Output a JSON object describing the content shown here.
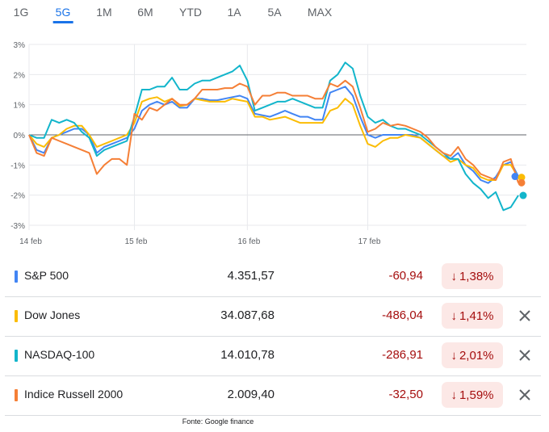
{
  "tabs": [
    {
      "label": "1G",
      "active": false
    },
    {
      "label": "5G",
      "active": true
    },
    {
      "label": "1M",
      "active": false
    },
    {
      "label": "6M",
      "active": false
    },
    {
      "label": "YTD",
      "active": false
    },
    {
      "label": "1A",
      "active": false
    },
    {
      "label": "5A",
      "active": false
    },
    {
      "label": "MAX",
      "active": false
    }
  ],
  "chart_data": {
    "type": "line",
    "x_labels": [
      "14 feb",
      "15 feb",
      "16 feb",
      "17 feb"
    ],
    "y_ticks": [
      "3%",
      "2%",
      "1%",
      "0%",
      "-1%",
      "-2%",
      "-3%"
    ],
    "ylim": [
      -3,
      3
    ],
    "baseline": 0,
    "grid": true,
    "series": [
      {
        "name": "S&P 500",
        "color": "#4285f4",
        "values": [
          0.0,
          -0.5,
          -0.6,
          -0.1,
          0.0,
          0.1,
          0.2,
          0.2,
          0.0,
          -0.6,
          -0.4,
          -0.3,
          -0.2,
          -0.1,
          0.2,
          0.8,
          1.0,
          1.1,
          1.0,
          1.1,
          0.9,
          0.9,
          1.2,
          1.2,
          1.15,
          1.15,
          1.2,
          1.25,
          1.3,
          1.2,
          0.7,
          0.65,
          0.6,
          0.7,
          0.8,
          0.7,
          0.6,
          0.6,
          0.5,
          0.5,
          1.4,
          1.5,
          1.6,
          1.3,
          0.6,
          0.0,
          -0.1,
          0.0,
          0.0,
          0.0,
          0.0,
          0.0,
          -0.1,
          -0.3,
          -0.5,
          -0.7,
          -0.8,
          -0.6,
          -1.0,
          -1.2,
          -1.5,
          -1.6,
          -1.4,
          -1.0,
          -0.9,
          -1.38
        ]
      },
      {
        "name": "Dow Jones",
        "color": "#fbbc04",
        "values": [
          0.0,
          -0.3,
          -0.4,
          -0.1,
          0.0,
          0.2,
          0.3,
          0.3,
          0.0,
          -0.4,
          -0.3,
          -0.2,
          -0.1,
          0.0,
          0.4,
          1.1,
          1.2,
          1.25,
          1.1,
          1.2,
          0.95,
          1.0,
          1.2,
          1.15,
          1.1,
          1.1,
          1.1,
          1.2,
          1.15,
          1.1,
          0.6,
          0.6,
          0.5,
          0.55,
          0.6,
          0.5,
          0.4,
          0.4,
          0.4,
          0.4,
          0.8,
          0.9,
          1.2,
          1.0,
          0.3,
          -0.3,
          -0.4,
          -0.2,
          -0.1,
          -0.1,
          0.0,
          -0.05,
          -0.1,
          -0.3,
          -0.5,
          -0.7,
          -0.9,
          -0.8,
          -1.0,
          -1.1,
          -1.4,
          -1.5,
          -1.5,
          -1.0,
          -1.0,
          -1.41
        ]
      },
      {
        "name": "NASDAQ-100",
        "color": "#12b5cb",
        "values": [
          0.0,
          -0.1,
          -0.1,
          0.5,
          0.4,
          0.5,
          0.4,
          0.1,
          -0.1,
          -0.7,
          -0.5,
          -0.4,
          -0.3,
          -0.2,
          0.6,
          1.5,
          1.5,
          1.6,
          1.6,
          1.9,
          1.5,
          1.5,
          1.7,
          1.8,
          1.8,
          1.9,
          2.0,
          2.1,
          2.3,
          1.8,
          0.8,
          0.9,
          1.0,
          1.1,
          1.1,
          1.2,
          1.1,
          1.0,
          0.9,
          0.9,
          1.8,
          2.0,
          2.4,
          2.2,
          1.3,
          0.6,
          0.4,
          0.5,
          0.3,
          0.2,
          0.2,
          0.1,
          0.0,
          -0.2,
          -0.4,
          -0.6,
          -0.8,
          -0.8,
          -1.3,
          -1.6,
          -1.8,
          -2.1,
          -1.9,
          -2.5,
          -2.4,
          -2.01
        ]
      },
      {
        "name": "Indice Russell 2000",
        "color": "#f57f36",
        "values": [
          0.0,
          -0.6,
          -0.7,
          -0.1,
          -0.2,
          -0.3,
          -0.4,
          -0.5,
          -0.6,
          -1.3,
          -1.0,
          -0.8,
          -0.8,
          -1.0,
          0.7,
          0.5,
          0.9,
          0.8,
          1.0,
          1.2,
          1.0,
          1.0,
          1.2,
          1.5,
          1.5,
          1.5,
          1.55,
          1.55,
          1.7,
          1.6,
          1.0,
          1.3,
          1.3,
          1.4,
          1.4,
          1.3,
          1.3,
          1.3,
          1.2,
          1.2,
          1.7,
          1.6,
          1.8,
          1.6,
          0.9,
          0.1,
          0.2,
          0.4,
          0.3,
          0.35,
          0.3,
          0.2,
          0.1,
          -0.1,
          -0.4,
          -0.6,
          -0.7,
          -0.4,
          -0.8,
          -1.0,
          -1.3,
          -1.4,
          -1.5,
          -0.9,
          -0.8,
          -1.59
        ]
      }
    ]
  },
  "rows": [
    {
      "name": "S&P 500",
      "color": "#4285f4",
      "price": "4.351,57",
      "change": "-60,94",
      "pct": "1,38%",
      "closable": false
    },
    {
      "name": "Dow Jones",
      "color": "#fbbc04",
      "price": "34.087,68",
      "change": "-486,04",
      "pct": "1,41%",
      "closable": true
    },
    {
      "name": "NASDAQ-100",
      "color": "#12b5cb",
      "price": "14.010,78",
      "change": "-286,91",
      "pct": "2,01%",
      "closable": true
    },
    {
      "name": "Indice Russell 2000",
      "color": "#f57f36",
      "price": "2.009,40",
      "change": "-32,50",
      "pct": "1,59%",
      "closable": true
    }
  ],
  "icons": {
    "down_arrow": "arrow-down-icon",
    "close": "close-icon"
  },
  "source": "Fonte: Google finance"
}
